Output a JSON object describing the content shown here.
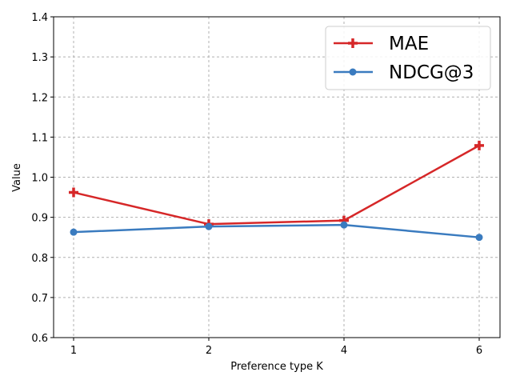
{
  "chart_data": {
    "type": "line",
    "xlabel": "Preference type K",
    "ylabel": "Value",
    "x_tick_labels": [
      "1",
      "2",
      "4",
      "6"
    ],
    "x": [
      1,
      2,
      4,
      6
    ],
    "ylim": [
      0.6,
      1.4
    ],
    "y_ticks": [
      0.6,
      0.7,
      0.8,
      0.9,
      1.0,
      1.1,
      1.2,
      1.3,
      1.4
    ],
    "y_tick_labels": [
      "0.6",
      "0.7",
      "0.8",
      "0.9",
      "1.0",
      "1.1",
      "1.2",
      "1.3",
      "1.4"
    ],
    "grid": true,
    "legend_position": "top-right",
    "series": [
      {
        "name": "MAE",
        "values": [
          0.962,
          0.883,
          0.892,
          1.079
        ],
        "color": "#d62728",
        "marker": "plus"
      },
      {
        "name": "NDCG@3",
        "values": [
          0.863,
          0.877,
          0.881,
          0.85
        ],
        "color": "#3a7bbf",
        "marker": "circle"
      }
    ]
  }
}
